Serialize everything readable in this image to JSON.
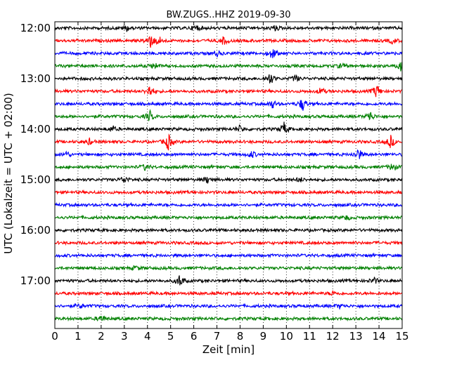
{
  "chart_data": {
    "type": "line",
    "title": "BW.ZUGS..HHZ 2019-09-30",
    "xlabel": "Zeit  [min]",
    "ylabel": "UTC (Lokalzeit = UTC + 02:00)",
    "xlim": [
      0,
      15
    ],
    "x_ticks": [
      "0",
      "1",
      "2",
      "3",
      "4",
      "5",
      "6",
      "7",
      "8",
      "9",
      "10",
      "11",
      "12",
      "13",
      "14",
      "15"
    ],
    "y_ticks": [
      "12:00",
      "13:00",
      "14:00",
      "15:00",
      "16:00",
      "17:00"
    ],
    "grid": "vertical-dotted",
    "colors": [
      "#000000",
      "#ff0000",
      "#0000ff",
      "#008000"
    ],
    "series": [
      {
        "label": "12:00",
        "events": [
          [
            3.1,
            4
          ],
          [
            6.1,
            5
          ],
          [
            9.5,
            4
          ]
        ]
      },
      {
        "label": "12:15",
        "events": [
          [
            4.1,
            12
          ],
          [
            4.5,
            6
          ],
          [
            7.3,
            6
          ],
          [
            14.6,
            4
          ]
        ]
      },
      {
        "label": "12:30",
        "events": [
          [
            9.4,
            9
          ],
          [
            7.0,
            4
          ]
        ]
      },
      {
        "label": "12:45",
        "events": [
          [
            4.3,
            5
          ],
          [
            12.4,
            4
          ],
          [
            15.0,
            10
          ]
        ]
      },
      {
        "label": "13:00",
        "events": [
          [
            9.3,
            9
          ],
          [
            10.4,
            5
          ]
        ]
      },
      {
        "label": "13:15",
        "events": [
          [
            4.1,
            9
          ],
          [
            11.5,
            5
          ],
          [
            13.9,
            10
          ]
        ]
      },
      {
        "label": "13:30",
        "events": [
          [
            9.4,
            6
          ],
          [
            10.7,
            10
          ]
        ]
      },
      {
        "label": "13:45",
        "events": [
          [
            4.1,
            8
          ],
          [
            13.6,
            8
          ]
        ]
      },
      {
        "label": "14:00",
        "events": [
          [
            8.0,
            5
          ],
          [
            9.9,
            9
          ],
          [
            2.5,
            4
          ]
        ]
      },
      {
        "label": "14:15",
        "events": [
          [
            4.9,
            12
          ],
          [
            14.5,
            9
          ],
          [
            1.5,
            4
          ]
        ]
      },
      {
        "label": "14:30",
        "events": [
          [
            8.5,
            5
          ],
          [
            13.1,
            9
          ],
          [
            0.5,
            4
          ]
        ]
      },
      {
        "label": "14:45",
        "events": [
          [
            3.9,
            4
          ],
          [
            14.6,
            6
          ]
        ]
      },
      {
        "label": "15:00",
        "events": [
          [
            3.0,
            5
          ],
          [
            6.6,
            5
          ],
          [
            10.6,
            3
          ]
        ]
      },
      {
        "label": "15:15",
        "events": []
      },
      {
        "label": "15:30",
        "events": []
      },
      {
        "label": "15:45",
        "events": [
          [
            12.6,
            3
          ]
        ]
      },
      {
        "label": "16:00",
        "events": []
      },
      {
        "label": "16:15",
        "events": []
      },
      {
        "label": "16:30",
        "events": []
      },
      {
        "label": "16:45",
        "events": [
          [
            3.5,
            3
          ]
        ]
      },
      {
        "label": "17:00",
        "events": [
          [
            5.4,
            9
          ],
          [
            13.8,
            4
          ]
        ]
      },
      {
        "label": "17:15",
        "events": [
          [
            12.0,
            3
          ]
        ]
      },
      {
        "label": "17:30",
        "events": [
          [
            1.1,
            3
          ],
          [
            12.3,
            3
          ]
        ]
      },
      {
        "label": "17:45",
        "events": [
          [
            2.0,
            5
          ]
        ]
      }
    ]
  }
}
